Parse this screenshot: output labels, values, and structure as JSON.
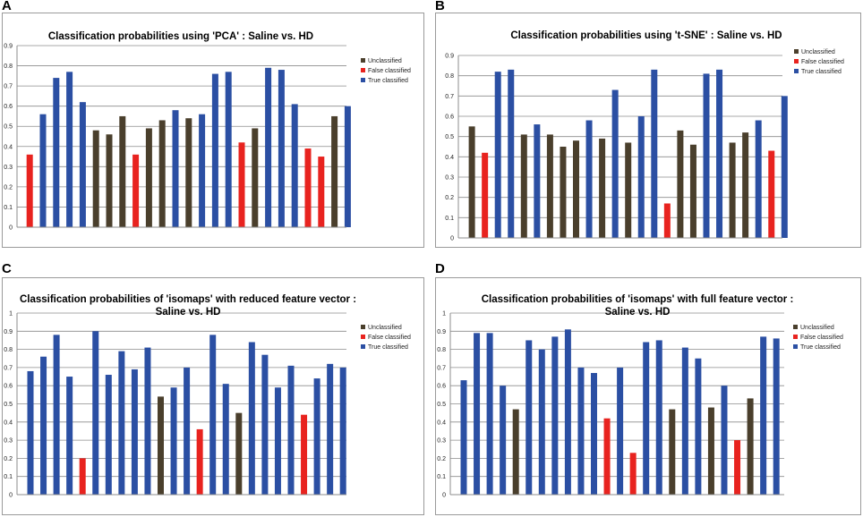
{
  "panels": [
    "A",
    "B",
    "C",
    "D"
  ],
  "colors": {
    "Unclassified": "#4a3f2c",
    "False classified": "#e8231f",
    "True classified": "#2b4fa3"
  },
  "chart_data": [
    {
      "type": "bar",
      "panel": "A",
      "title_lines": [
        "Classification probabilities using 'PCA'  : Saline vs. HD"
      ],
      "ylim": [
        0,
        0.9
      ],
      "yticks": [
        "0",
        "0.1",
        "0.2",
        "0.3",
        "0.4",
        "0.5",
        "0.6",
        "0.7",
        "0.8",
        "0.9"
      ],
      "legend": [
        "Unclassified",
        "False classified",
        "True classified"
      ],
      "values": [
        0.36,
        0.56,
        0.74,
        0.77,
        0.62,
        0.48,
        0.46,
        0.55,
        0.36,
        0.49,
        0.53,
        0.58,
        0.54,
        0.56,
        0.76,
        0.77,
        0.42,
        0.49,
        0.79,
        0.78,
        0.61,
        0.39,
        0.35,
        0.55,
        0.6
      ],
      "classes": [
        "False classified",
        "True classified",
        "True classified",
        "True classified",
        "True classified",
        "Unclassified",
        "Unclassified",
        "Unclassified",
        "False classified",
        "Unclassified",
        "Unclassified",
        "True classified",
        "Unclassified",
        "True classified",
        "True classified",
        "True classified",
        "False classified",
        "Unclassified",
        "True classified",
        "True classified",
        "True classified",
        "False classified",
        "False classified",
        "Unclassified",
        "True classified"
      ]
    },
    {
      "type": "bar",
      "panel": "B",
      "title_lines": [
        "Classification probabilities using 't-SNE'  : Saline vs. HD"
      ],
      "ylim": [
        0,
        0.9
      ],
      "yticks": [
        "0",
        "0.1",
        "0.2",
        "0.3",
        "0.4",
        "0.5",
        "0.6",
        "0.7",
        "0.8",
        "0.9"
      ],
      "legend": [
        "Unclassified",
        "False classified",
        "True classified"
      ],
      "values": [
        0.55,
        0.42,
        0.82,
        0.83,
        0.51,
        0.56,
        0.51,
        0.45,
        0.48,
        0.58,
        0.49,
        0.73,
        0.47,
        0.6,
        0.83,
        0.17,
        0.53,
        0.46,
        0.81,
        0.83,
        0.47,
        0.52,
        0.58,
        0.43,
        0.7
      ],
      "classes": [
        "Unclassified",
        "False classified",
        "True classified",
        "True classified",
        "Unclassified",
        "True classified",
        "Unclassified",
        "Unclassified",
        "Unclassified",
        "True classified",
        "Unclassified",
        "True classified",
        "Unclassified",
        "True classified",
        "True classified",
        "False classified",
        "Unclassified",
        "Unclassified",
        "True classified",
        "True classified",
        "Unclassified",
        "Unclassified",
        "True classified",
        "False classified",
        "True classified"
      ]
    },
    {
      "type": "bar",
      "panel": "C",
      "title_lines": [
        "Classification probabilities of 'isomaps' with reduced feature vector :",
        "Saline vs. HD"
      ],
      "ylim": [
        0,
        1
      ],
      "yticks": [
        "0",
        "0.1",
        "0.2",
        "0.3",
        "0.4",
        "0.5",
        "0.6",
        "0.7",
        "0.8",
        "0.9",
        "1"
      ],
      "legend": [
        "Unclassified",
        "False classified",
        "True classified"
      ],
      "values": [
        0.68,
        0.76,
        0.88,
        0.65,
        0.2,
        0.9,
        0.66,
        0.79,
        0.69,
        0.81,
        0.54,
        0.59,
        0.7,
        0.36,
        0.88,
        0.61,
        0.45,
        0.84,
        0.77,
        0.59,
        0.71,
        0.44,
        0.64,
        0.72,
        0.7
      ],
      "classes": [
        "True classified",
        "True classified",
        "True classified",
        "True classified",
        "False classified",
        "True classified",
        "True classified",
        "True classified",
        "True classified",
        "True classified",
        "Unclassified",
        "True classified",
        "True classified",
        "False classified",
        "True classified",
        "True classified",
        "Unclassified",
        "True classified",
        "True classified",
        "True classified",
        "True classified",
        "False classified",
        "True classified",
        "True classified",
        "True classified"
      ]
    },
    {
      "type": "bar",
      "panel": "D",
      "title_lines": [
        "Classification probabilities of 'isomaps' with full feature vector :",
        "Saline vs. HD"
      ],
      "ylim": [
        0,
        1
      ],
      "yticks": [
        "0",
        "0.1",
        "0.2",
        "0.3",
        "0.4",
        "0.5",
        "0.6",
        "0.7",
        "0.8",
        "0.9",
        "1"
      ],
      "legend": [
        "Unclassified",
        "False classified",
        "True classified"
      ],
      "values": [
        0.63,
        0.89,
        0.89,
        0.6,
        0.47,
        0.85,
        0.8,
        0.87,
        0.91,
        0.7,
        0.67,
        0.42,
        0.7,
        0.23,
        0.84,
        0.85,
        0.47,
        0.81,
        0.75,
        0.48,
        0.6,
        0.3,
        0.53,
        0.87,
        0.86
      ],
      "classes": [
        "True classified",
        "True classified",
        "True classified",
        "True classified",
        "Unclassified",
        "True classified",
        "True classified",
        "True classified",
        "True classified",
        "True classified",
        "True classified",
        "False classified",
        "True classified",
        "False classified",
        "True classified",
        "True classified",
        "Unclassified",
        "True classified",
        "True classified",
        "Unclassified",
        "True classified",
        "False classified",
        "Unclassified",
        "True classified",
        "True classified"
      ]
    }
  ]
}
